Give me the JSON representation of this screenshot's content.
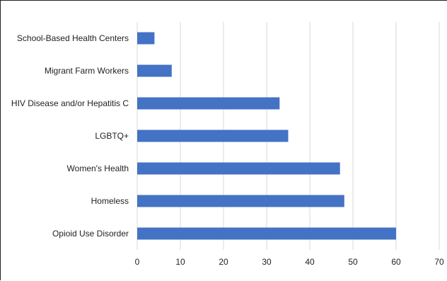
{
  "chart_data": {
    "type": "bar",
    "orientation": "horizontal",
    "title": "",
    "xlabel": "",
    "ylabel": "",
    "categories": [
      "School-Based Health Centers",
      "Migrant Farm Workers",
      "HIV Disease and/or Hepatitis C",
      "LGBTQ+",
      "Women's Health",
      "Homeless",
      "Opioid Use Disorder"
    ],
    "values": [
      4,
      8,
      33,
      35,
      47,
      48,
      60
    ],
    "xlim": [
      0,
      70
    ],
    "x_ticks": [
      "0",
      "10",
      "20",
      "30",
      "40",
      "50",
      "60",
      "70"
    ],
    "grid": "vertical",
    "legend": "none",
    "bar_color": "#4472c4",
    "grid_color": "#d9d9d9"
  }
}
